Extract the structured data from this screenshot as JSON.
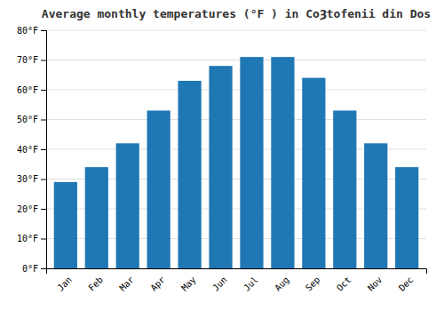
{
  "chart_data": {
    "type": "bar",
    "title": "Average monthly temperatures (°F ) in CoȜtofenii din Dos",
    "categories": [
      "Jan",
      "Feb",
      "Mar",
      "Apr",
      "May",
      "Jun",
      "Jul",
      "Aug",
      "Sep",
      "Oct",
      "Nov",
      "Dec"
    ],
    "values": [
      29,
      34,
      42,
      53,
      63,
      68,
      71,
      71,
      64,
      53,
      42,
      34
    ],
    "ylim": [
      0,
      80
    ],
    "yticks": [
      {
        "value": 0,
        "label": "0°F"
      },
      {
        "value": 10,
        "label": "10°F"
      },
      {
        "value": 20,
        "label": "20°F"
      },
      {
        "value": 30,
        "label": "30°F"
      },
      {
        "value": 40,
        "label": "40°F"
      },
      {
        "value": 50,
        "label": "50°F"
      },
      {
        "value": 60,
        "label": "60°F"
      },
      {
        "value": 70,
        "label": "70°F"
      },
      {
        "value": 80,
        "label": "80°F"
      }
    ],
    "grid": true
  }
}
